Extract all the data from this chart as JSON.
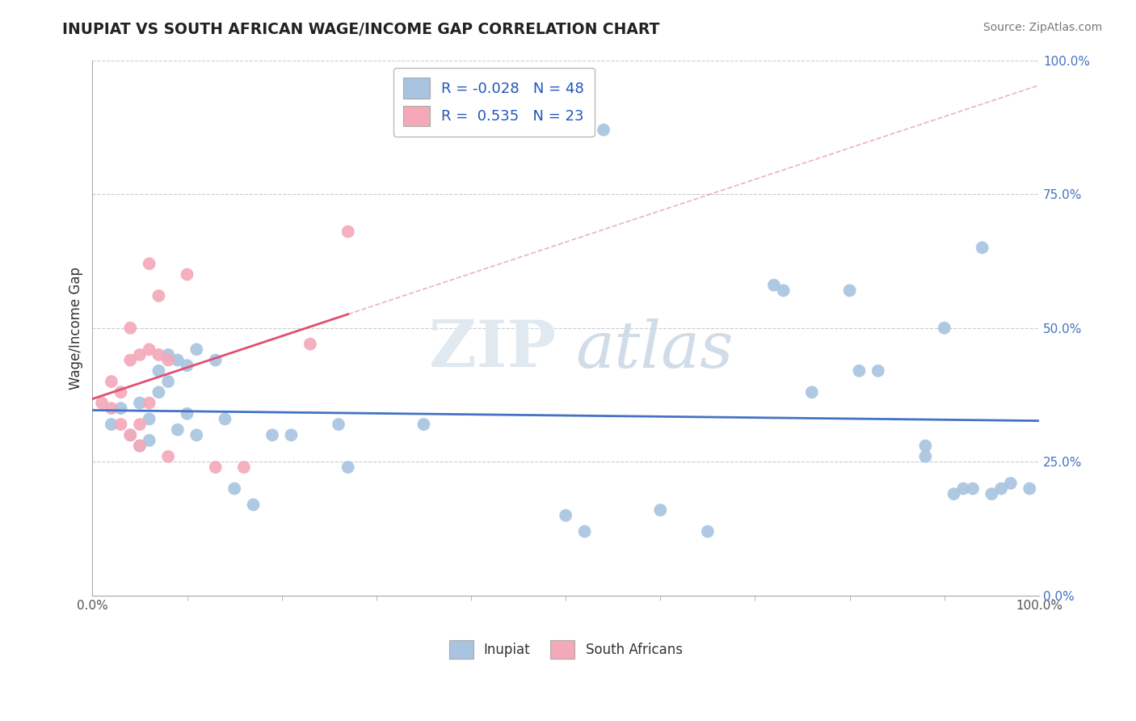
{
  "title": "INUPIAT VS SOUTH AFRICAN WAGE/INCOME GAP CORRELATION CHART",
  "source": "Source: ZipAtlas.com",
  "ylabel": "Wage/Income Gap",
  "xlim": [
    0.0,
    1.0
  ],
  "ylim": [
    0.0,
    1.0
  ],
  "ytick_positions": [
    0.0,
    0.25,
    0.5,
    0.75,
    1.0
  ],
  "ytick_labels": [
    "0.0%",
    "25.0%",
    "50.0%",
    "75.0%",
    "100.0%"
  ],
  "grid_color": "#cccccc",
  "background_color": "#ffffff",
  "watermark_zip": "ZIP",
  "watermark_atlas": "atlas",
  "legend_text1": "R = -0.028   N = 48",
  "legend_text2": "R =  0.535   N = 23",
  "inupiat_color": "#a8c4e0",
  "south_african_color": "#f4a8b8",
  "inupiat_line_color": "#4472c4",
  "south_african_line_color": "#e05070",
  "inupiat_scatter": [
    [
      0.02,
      0.32
    ],
    [
      0.03,
      0.35
    ],
    [
      0.04,
      0.3
    ],
    [
      0.05,
      0.36
    ],
    [
      0.05,
      0.28
    ],
    [
      0.06,
      0.33
    ],
    [
      0.06,
      0.29
    ],
    [
      0.07,
      0.42
    ],
    [
      0.07,
      0.38
    ],
    [
      0.08,
      0.45
    ],
    [
      0.08,
      0.4
    ],
    [
      0.09,
      0.44
    ],
    [
      0.09,
      0.31
    ],
    [
      0.1,
      0.43
    ],
    [
      0.1,
      0.34
    ],
    [
      0.11,
      0.46
    ],
    [
      0.11,
      0.3
    ],
    [
      0.13,
      0.44
    ],
    [
      0.14,
      0.33
    ],
    [
      0.15,
      0.2
    ],
    [
      0.17,
      0.17
    ],
    [
      0.19,
      0.3
    ],
    [
      0.21,
      0.3
    ],
    [
      0.26,
      0.32
    ],
    [
      0.27,
      0.24
    ],
    [
      0.35,
      0.32
    ],
    [
      0.5,
      0.15
    ],
    [
      0.52,
      0.12
    ],
    [
      0.54,
      0.87
    ],
    [
      0.6,
      0.16
    ],
    [
      0.65,
      0.12
    ],
    [
      0.72,
      0.58
    ],
    [
      0.73,
      0.57
    ],
    [
      0.76,
      0.38
    ],
    [
      0.8,
      0.57
    ],
    [
      0.81,
      0.42
    ],
    [
      0.83,
      0.42
    ],
    [
      0.88,
      0.28
    ],
    [
      0.88,
      0.26
    ],
    [
      0.9,
      0.5
    ],
    [
      0.91,
      0.19
    ],
    [
      0.92,
      0.2
    ],
    [
      0.93,
      0.2
    ],
    [
      0.94,
      0.65
    ],
    [
      0.95,
      0.19
    ],
    [
      0.96,
      0.2
    ],
    [
      0.97,
      0.21
    ],
    [
      0.99,
      0.2
    ]
  ],
  "south_african_scatter": [
    [
      0.01,
      0.36
    ],
    [
      0.02,
      0.4
    ],
    [
      0.02,
      0.35
    ],
    [
      0.03,
      0.38
    ],
    [
      0.03,
      0.32
    ],
    [
      0.04,
      0.5
    ],
    [
      0.04,
      0.44
    ],
    [
      0.04,
      0.3
    ],
    [
      0.05,
      0.45
    ],
    [
      0.05,
      0.32
    ],
    [
      0.05,
      0.28
    ],
    [
      0.06,
      0.62
    ],
    [
      0.06,
      0.46
    ],
    [
      0.06,
      0.36
    ],
    [
      0.07,
      0.56
    ],
    [
      0.07,
      0.45
    ],
    [
      0.08,
      0.44
    ],
    [
      0.08,
      0.26
    ],
    [
      0.1,
      0.6
    ],
    [
      0.13,
      0.24
    ],
    [
      0.16,
      0.24
    ],
    [
      0.23,
      0.47
    ],
    [
      0.27,
      0.68
    ]
  ]
}
